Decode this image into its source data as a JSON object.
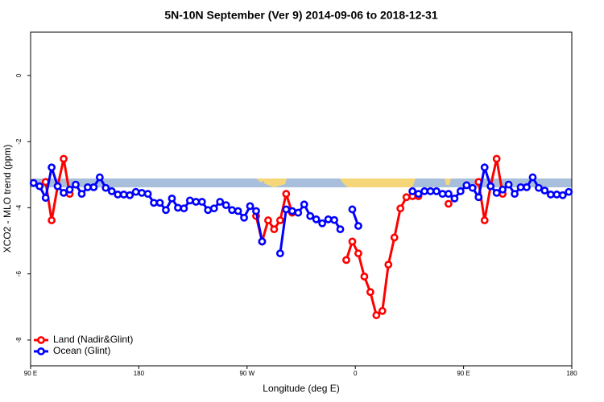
{
  "chart_data": {
    "type": "line",
    "title": "5N-10N September (Ver 9)   2014-09-06 to 2018-12-31",
    "x_label": "Longitude (deg E)",
    "y_label": "XCO2 - MLO trend (ppm)",
    "xlim": [
      90,
      540
    ],
    "ylim": [
      -8.78,
      1.31
    ],
    "xticks": [
      {
        "value": 90,
        "label": "90 E"
      },
      180,
      {
        "value": 270,
        "label": "90 W"
      },
      {
        "value": 360,
        "label": "0"
      },
      {
        "value": 450,
        "label": "90 E"
      },
      {
        "value": 540,
        "label": "180"
      }
    ],
    "yticks": [
      0,
      -2,
      -4,
      -6,
      -8
    ],
    "legend": "bottom-left",
    "x": [
      92.5,
      97.5,
      102.5,
      107.5,
      112.5,
      117.5,
      122.5,
      127.5,
      132.5,
      137.5,
      142.5,
      147.5,
      152.5,
      157.5,
      162.5,
      167.5,
      172.5,
      177.5,
      182.5,
      187.5,
      192.5,
      197.5,
      202.5,
      207.5,
      212.5,
      217.5,
      222.5,
      227.5,
      232.5,
      237.5,
      242.5,
      247.5,
      252.5,
      257.5,
      262.5,
      267.5,
      272.5,
      277.5,
      282.5,
      287.5,
      292.5,
      297.5,
      302.5,
      307.5,
      312.5,
      317.5,
      322.5,
      327.5,
      332.5,
      337.5,
      342.5,
      347.5,
      352.5,
      357.5,
      362.5,
      367.5,
      372.5,
      377.5,
      382.5,
      387.5,
      392.5,
      397.5,
      402.5,
      407.5,
      412.5,
      417.5,
      422.5,
      427.5,
      432.5,
      437.5,
      442.5,
      447.5,
      452.5,
      457.5,
      462.5,
      467.5,
      472.5,
      477.5,
      482.5,
      487.5,
      492.5,
      497.5,
      502.5,
      507.5,
      512.5,
      517.5,
      522.5,
      527.5,
      532.5,
      537.5
    ],
    "series": [
      {
        "name": "Land (Nadir&Glint)",
        "color": "#ff0000",
        "values": [
          null,
          null,
          -3.22,
          -4.38,
          -3.35,
          -2.52,
          -3.58,
          null,
          null,
          null,
          null,
          null,
          null,
          null,
          null,
          null,
          null,
          null,
          null,
          null,
          null,
          null,
          null,
          null,
          null,
          null,
          null,
          null,
          null,
          null,
          null,
          null,
          null,
          null,
          null,
          null,
          null,
          -4.25,
          -5.02,
          -4.38,
          -4.65,
          -4.38,
          -3.58,
          -4.15,
          null,
          null,
          null,
          null,
          null,
          null,
          null,
          null,
          -5.58,
          -5.02,
          -5.38,
          -6.08,
          -6.55,
          -7.25,
          -7.12,
          -5.72,
          -4.9,
          -4.02,
          -3.68,
          -3.65,
          -3.65,
          null,
          null,
          null,
          null,
          -3.88,
          null,
          null,
          null,
          null,
          -3.22,
          -4.38,
          -3.35,
          -2.52,
          -3.58,
          null,
          null,
          null,
          null,
          null,
          null,
          null,
          null,
          null,
          null,
          null
        ]
      },
      {
        "name": "Ocean (Glint)",
        "color": "#0000ff",
        "values": [
          -3.25,
          -3.35,
          -3.7,
          -2.78,
          -3.35,
          -3.55,
          -3.45,
          -3.3,
          -3.58,
          -3.38,
          -3.38,
          -3.08,
          -3.4,
          -3.5,
          -3.6,
          -3.6,
          -3.62,
          -3.52,
          -3.55,
          -3.58,
          -3.85,
          -3.85,
          -4.07,
          -3.72,
          -4.0,
          -4.02,
          -3.78,
          -3.82,
          -3.82,
          -4.07,
          -4.02,
          -3.82,
          -3.92,
          -4.07,
          -4.1,
          -4.3,
          -3.95,
          -4.1,
          -5.02,
          null,
          null,
          -5.38,
          -4.05,
          -4.1,
          -4.15,
          -3.9,
          -4.25,
          -4.35,
          -4.47,
          -4.35,
          -4.37,
          -4.65,
          null,
          -4.05,
          -4.55,
          null,
          null,
          null,
          null,
          null,
          null,
          null,
          null,
          -3.5,
          -3.58,
          -3.5,
          -3.5,
          -3.5,
          -3.58,
          -3.58,
          -3.72,
          -3.5,
          -3.32,
          -3.4,
          -3.68,
          -2.78,
          -3.35,
          -3.55,
          -3.45,
          -3.3,
          -3.58,
          -3.38,
          -3.38,
          -3.08,
          -3.4,
          -3.48,
          -3.6,
          -3.6,
          -3.62,
          -3.52
        ]
      }
    ]
  }
}
